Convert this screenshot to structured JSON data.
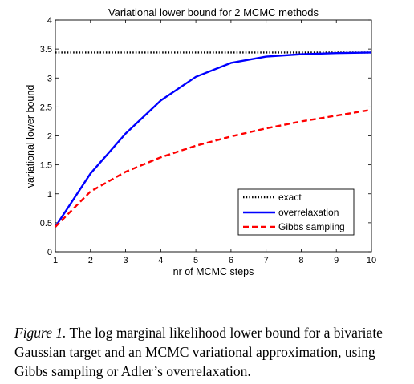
{
  "chart_data": {
    "type": "line",
    "title": "Variational lower bound for 2 MCMC methods",
    "xlabel": "nr of MCMC steps",
    "ylabel": "variational lower bound",
    "xlim": [
      1,
      10
    ],
    "ylim": [
      0,
      4
    ],
    "xticks": [
      "1",
      "2",
      "3",
      "4",
      "5",
      "6",
      "7",
      "8",
      "9",
      "10"
    ],
    "yticks": [
      "0",
      "0.5",
      "1",
      "1.5",
      "2",
      "2.5",
      "3",
      "3.5",
      "4"
    ],
    "x": [
      1,
      2,
      3,
      4,
      5,
      6,
      7,
      8,
      9,
      10
    ],
    "legend_position": "lower-right",
    "grid": false,
    "series": [
      {
        "name": "exact",
        "color": "#000000",
        "style": "dotted",
        "values": [
          3.44,
          3.44,
          3.44,
          3.44,
          3.44,
          3.44,
          3.44,
          3.44,
          3.44,
          3.44
        ]
      },
      {
        "name": "overrelaxation",
        "color": "#0000ff",
        "style": "solid",
        "values": [
          0.43,
          1.35,
          2.04,
          2.61,
          3.02,
          3.26,
          3.37,
          3.41,
          3.43,
          3.44
        ]
      },
      {
        "name": "Gibbs sampling",
        "color": "#ff0000",
        "style": "dashed",
        "values": [
          0.43,
          1.04,
          1.38,
          1.63,
          1.83,
          1.99,
          2.13,
          2.25,
          2.35,
          2.45
        ]
      }
    ]
  },
  "caption": {
    "lead": "Figure 1.",
    "text": " The log marginal likelihood lower bound for a bivariate Gaussian target and an MCMC variational approximation, using Gibbs sampling or Adler’s overrelaxation."
  }
}
